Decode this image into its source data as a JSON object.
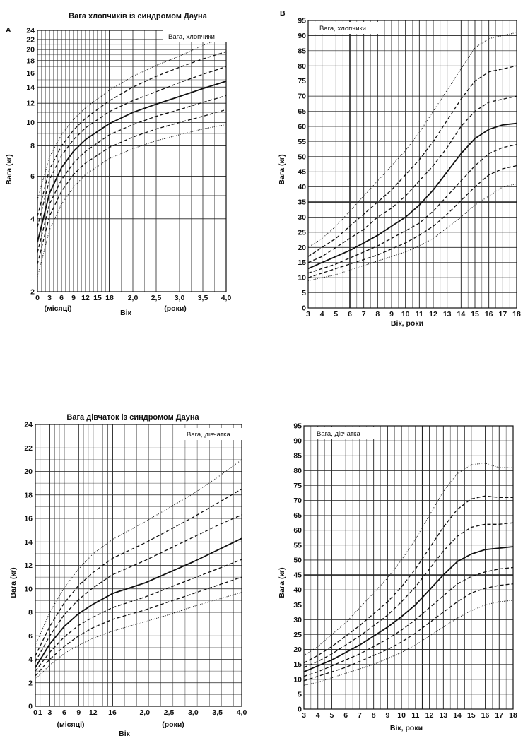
{
  "chart_data": [
    {
      "id": "A",
      "type": "line",
      "panel_letter": "A",
      "title": "Вага хлопчиків із синдромом Дауна",
      "legend": "Вага, хлопчики",
      "legend_placement": "top-right",
      "ylabel": "Вага (кг)",
      "xlabel": "Вік",
      "xlabel_months": "(місяці)",
      "xlabel_years": "(роки)",
      "ylim": [
        2,
        24
      ],
      "y_scale": "log",
      "yticks": [
        "2",
        "4",
        "6",
        "8",
        "10",
        "12",
        "14",
        "16",
        "18",
        "20",
        "22",
        "24"
      ],
      "xticks_months": [
        "0",
        "3",
        "6",
        "9",
        "12",
        "15",
        "18"
      ],
      "xticks_years": [
        "2,0",
        "2,5",
        "3,0",
        "3,5",
        "4,0"
      ],
      "grid": true,
      "x_unit": "months",
      "series": [
        {
          "style": "dotted",
          "x": [
            0,
            3,
            6,
            9,
            12,
            18,
            24,
            30,
            36,
            42,
            48
          ],
          "values": [
            4.8,
            7.2,
            8.9,
            10.3,
            11.5,
            13.6,
            15.5,
            17.2,
            18.8,
            20.8,
            22.6
          ]
        },
        {
          "style": "dashed",
          "x": [
            0,
            3,
            6,
            9,
            12,
            18,
            24,
            30,
            36,
            42,
            48
          ],
          "values": [
            4.1,
            6.4,
            8.0,
            9.3,
            10.4,
            12.3,
            14.0,
            15.5,
            16.9,
            18.3,
            19.6
          ]
        },
        {
          "style": "dashed",
          "x": [
            0,
            3,
            6,
            9,
            12,
            18,
            24,
            30,
            36,
            42,
            48
          ],
          "values": [
            3.7,
            5.8,
            7.3,
            8.5,
            9.5,
            11.1,
            12.3,
            13.4,
            14.6,
            15.8,
            17.0
          ]
        },
        {
          "style": "solid",
          "x": [
            0,
            3,
            6,
            9,
            12,
            18,
            24,
            30,
            36,
            42,
            48
          ],
          "values": [
            3.2,
            5.1,
            6.5,
            7.6,
            8.5,
            9.9,
            11.0,
            11.9,
            12.8,
            13.8,
            14.8
          ]
        },
        {
          "style": "dashed",
          "x": [
            0,
            3,
            6,
            9,
            12,
            18,
            24,
            30,
            36,
            42,
            48
          ],
          "values": [
            2.9,
            4.6,
            5.8,
            6.8,
            7.6,
            8.9,
            9.8,
            10.6,
            11.3,
            12.1,
            12.9
          ]
        },
        {
          "style": "dashed",
          "x": [
            0,
            3,
            6,
            9,
            12,
            18,
            24,
            30,
            36,
            42,
            48
          ],
          "values": [
            2.6,
            4.1,
            5.2,
            6.1,
            6.8,
            7.9,
            8.7,
            9.4,
            10.0,
            10.6,
            11.3
          ]
        },
        {
          "style": "dotted",
          "x": [
            0,
            3,
            6,
            9,
            12,
            18,
            24,
            30,
            36,
            42,
            48
          ],
          "values": [
            2.3,
            3.6,
            4.6,
            5.4,
            6.1,
            7.1,
            7.8,
            8.4,
            8.9,
            9.4,
            9.8
          ]
        }
      ]
    },
    {
      "id": "B",
      "type": "line",
      "panel_letter": "B",
      "legend": "Вага, хлопчики",
      "legend_placement": "top-left",
      "ylabel": "Вага (кг)",
      "xlabel": "Вік, роки",
      "xlim": [
        3,
        18
      ],
      "ylim": [
        0,
        95
      ],
      "yticks": [
        "0",
        "5",
        "10",
        "15",
        "20",
        "25",
        "30",
        "35",
        "40",
        "45",
        "50",
        "55",
        "60",
        "65",
        "70",
        "75",
        "80",
        "85",
        "90",
        "95"
      ],
      "xticks": [
        "3",
        "4",
        "5",
        "6",
        "7",
        "8",
        "9",
        "10",
        "11",
        "12",
        "13",
        "14",
        "15",
        "16",
        "17",
        "18"
      ],
      "grid": true,
      "x_unit": "years",
      "series": [
        {
          "style": "dotted",
          "x": [
            3,
            4,
            5,
            6,
            7,
            8,
            9,
            10,
            11,
            12,
            13,
            14,
            15,
            16,
            17,
            18
          ],
          "values": [
            20,
            23,
            27,
            32,
            37,
            42,
            47,
            52,
            58,
            65,
            72,
            79,
            86,
            89,
            90,
            91
          ]
        },
        {
          "style": "dashed",
          "x": [
            3,
            4,
            5,
            6,
            7,
            8,
            9,
            10,
            11,
            12,
            13,
            14,
            15,
            16,
            17,
            18
          ],
          "values": [
            17,
            20,
            23,
            27,
            31,
            35,
            39,
            44,
            49,
            55,
            62,
            69,
            75,
            78,
            79,
            80
          ]
        },
        {
          "style": "dashed",
          "x": [
            3,
            4,
            5,
            6,
            7,
            8,
            9,
            10,
            11,
            12,
            13,
            14,
            15,
            16,
            17,
            18
          ],
          "values": [
            15,
            17,
            20,
            23,
            26,
            30,
            33,
            37,
            42,
            47,
            53,
            60,
            65,
            68,
            69,
            70
          ]
        },
        {
          "style": "solid",
          "x": [
            3,
            4,
            5,
            6,
            7,
            8,
            9,
            10,
            11,
            12,
            13,
            14,
            15,
            16,
            17,
            18
          ],
          "values": [
            13,
            15,
            17,
            19,
            21.5,
            24,
            27,
            30,
            34,
            39,
            45,
            51,
            56,
            59,
            60.5,
            61
          ]
        },
        {
          "style": "dashed",
          "x": [
            3,
            4,
            5,
            6,
            7,
            8,
            9,
            10,
            11,
            12,
            13,
            14,
            15,
            16,
            17,
            18
          ],
          "values": [
            11.5,
            13,
            14.5,
            16.5,
            18.5,
            20.5,
            23,
            25.5,
            28,
            32,
            37,
            42,
            47,
            51,
            53,
            54
          ]
        },
        {
          "style": "dashed",
          "x": [
            3,
            4,
            5,
            6,
            7,
            8,
            9,
            10,
            11,
            12,
            13,
            14,
            15,
            16,
            17,
            18
          ],
          "values": [
            10,
            11.5,
            13,
            14.5,
            16,
            17.5,
            19.5,
            21.5,
            24,
            27,
            31,
            35.5,
            40,
            44,
            46,
            47
          ]
        },
        {
          "style": "dotted",
          "x": [
            3,
            4,
            5,
            6,
            7,
            8,
            9,
            10,
            11,
            12,
            13,
            14,
            15,
            16,
            17,
            18
          ],
          "values": [
            9,
            10,
            11,
            12.5,
            14,
            15.5,
            17,
            18.5,
            20.5,
            23,
            26.5,
            30,
            34,
            37,
            40,
            41
          ]
        }
      ]
    },
    {
      "id": "C",
      "type": "line",
      "title": "Вага дівчаток із синдромом Дауна",
      "legend": "Вага, дівчатка",
      "legend_placement": "top-right",
      "ylabel": "Вага (кг)",
      "xlabel": "Вік",
      "xlabel_months": "(місяці)",
      "xlabel_years": "(роки)",
      "ylim": [
        0,
        24
      ],
      "yticks": [
        "0",
        "2",
        "4",
        "6",
        "8",
        "10",
        "12",
        "14",
        "16",
        "18",
        "20",
        "22",
        "24"
      ],
      "xticks_months": [
        "0",
        "1",
        "3",
        "6",
        "9",
        "12",
        "16"
      ],
      "xticks_years": [
        "2,0",
        "2,5",
        "3,0",
        "3,5",
        "4,0"
      ],
      "grid": true,
      "x_unit": "months",
      "series": [
        {
          "style": "dotted",
          "x": [
            0,
            3,
            6,
            9,
            12,
            16,
            24,
            30,
            36,
            42,
            48
          ],
          "values": [
            5.2,
            8.0,
            10.1,
            11.7,
            13.0,
            14.2,
            15.7,
            16.9,
            18.1,
            19.5,
            21.0
          ]
        },
        {
          "style": "dashed",
          "x": [
            0,
            3,
            6,
            9,
            12,
            16,
            24,
            30,
            36,
            42,
            48
          ],
          "values": [
            4.3,
            6.8,
            8.8,
            10.3,
            11.4,
            12.6,
            13.9,
            15.0,
            16.1,
            17.3,
            18.5
          ]
        },
        {
          "style": "dashed",
          "x": [
            0,
            3,
            6,
            9,
            12,
            16,
            24,
            30,
            36,
            42,
            48
          ],
          "values": [
            3.8,
            6.0,
            7.8,
            9.1,
            10.1,
            11.2,
            12.4,
            13.4,
            14.4,
            15.4,
            16.3
          ]
        },
        {
          "style": "solid",
          "x": [
            0,
            3,
            6,
            9,
            12,
            16,
            24,
            30,
            36,
            42,
            48
          ],
          "values": [
            3.3,
            5.3,
            6.8,
            7.9,
            8.7,
            9.6,
            10.5,
            11.4,
            12.3,
            13.3,
            14.3
          ]
        },
        {
          "style": "dashed",
          "x": [
            0,
            3,
            6,
            9,
            12,
            16,
            24,
            30,
            36,
            42,
            48
          ],
          "values": [
            3.0,
            4.6,
            5.9,
            6.9,
            7.6,
            8.4,
            9.3,
            10.1,
            10.9,
            11.7,
            12.5
          ]
        },
        {
          "style": "dashed",
          "x": [
            0,
            3,
            6,
            9,
            12,
            16,
            24,
            30,
            36,
            42,
            48
          ],
          "values": [
            2.6,
            4.0,
            5.1,
            6.0,
            6.7,
            7.4,
            8.2,
            8.9,
            9.6,
            10.3,
            11.0
          ]
        },
        {
          "style": "dotted",
          "x": [
            0,
            3,
            6,
            9,
            12,
            16,
            24,
            30,
            36,
            42,
            48
          ],
          "values": [
            2.3,
            3.5,
            4.5,
            5.2,
            5.8,
            6.4,
            7.2,
            7.8,
            8.5,
            9.1,
            9.7
          ]
        }
      ]
    },
    {
      "id": "D",
      "type": "line",
      "legend": "Вага, дівчатка",
      "legend_placement": "top-left",
      "ylabel": "Вага (кг)",
      "xlabel": "Вік, роки",
      "xlim": [
        3,
        18
      ],
      "ylim": [
        0,
        95
      ],
      "yticks": [
        "0",
        "5",
        "10",
        "15",
        "20",
        "25",
        "30",
        "35",
        "40",
        "45",
        "50",
        "55",
        "60",
        "65",
        "70",
        "75",
        "80",
        "85",
        "90",
        "95"
      ],
      "xticks": [
        "3",
        "4",
        "5",
        "6",
        "7",
        "8",
        "9",
        "10",
        "11",
        "12",
        "13",
        "14",
        "15",
        "16",
        "17",
        "18"
      ],
      "grid": true,
      "x_unit": "years",
      "series": [
        {
          "style": "dotted",
          "x": [
            3,
            4,
            5,
            6,
            7,
            8,
            9,
            10,
            11,
            12,
            13,
            14,
            15,
            16,
            17,
            18
          ],
          "values": [
            18,
            21,
            25,
            29,
            34,
            39,
            44,
            50,
            57,
            65,
            73,
            79,
            82,
            82.5,
            81,
            81
          ]
        },
        {
          "style": "dashed",
          "x": [
            3,
            4,
            5,
            6,
            7,
            8,
            9,
            10,
            11,
            12,
            13,
            14,
            15,
            16,
            17,
            18
          ],
          "values": [
            15.5,
            18,
            21,
            24.5,
            28,
            32,
            36,
            41,
            47,
            54,
            61,
            67,
            70.5,
            71.5,
            71,
            71
          ]
        },
        {
          "style": "dashed",
          "x": [
            3,
            4,
            5,
            6,
            7,
            8,
            9,
            10,
            11,
            12,
            13,
            14,
            15,
            16,
            17,
            18
          ],
          "values": [
            14,
            16,
            18.5,
            21.5,
            24.5,
            28,
            31.5,
            36,
            41,
            47,
            53,
            58,
            61,
            62,
            62,
            62.5
          ]
        },
        {
          "style": "solid",
          "x": [
            3,
            4,
            5,
            6,
            7,
            8,
            9,
            10,
            11,
            12,
            13,
            14,
            15,
            16,
            17,
            18
          ],
          "values": [
            12.5,
            14.5,
            16.5,
            19,
            21.5,
            24.5,
            27.5,
            31,
            35,
            40,
            45,
            49.5,
            52,
            53.5,
            54,
            54.5
          ]
        },
        {
          "style": "dashed",
          "x": [
            3,
            4,
            5,
            6,
            7,
            8,
            9,
            10,
            11,
            12,
            13,
            14,
            15,
            16,
            17,
            18
          ],
          "values": [
            11,
            12.5,
            14.5,
            16.5,
            18.5,
            21,
            23.5,
            26.5,
            30,
            34,
            38,
            42,
            44.5,
            46,
            47,
            47.5
          ]
        },
        {
          "style": "dashed",
          "x": [
            3,
            4,
            5,
            6,
            7,
            8,
            9,
            10,
            11,
            12,
            13,
            14,
            15,
            16,
            17,
            18
          ],
          "values": [
            9.5,
            11,
            12.5,
            14,
            16,
            18,
            20,
            22.5,
            25.5,
            29,
            32.5,
            36,
            39,
            40.5,
            41.5,
            42
          ]
        },
        {
          "style": "dotted",
          "x": [
            3,
            4,
            5,
            6,
            7,
            8,
            9,
            10,
            11,
            12,
            13,
            14,
            15,
            16,
            17,
            18
          ],
          "values": [
            8,
            9,
            10.5,
            12,
            13.5,
            15,
            17,
            19,
            21.5,
            24.5,
            27.5,
            30.5,
            33,
            35,
            36,
            36.5
          ]
        }
      ]
    }
  ]
}
